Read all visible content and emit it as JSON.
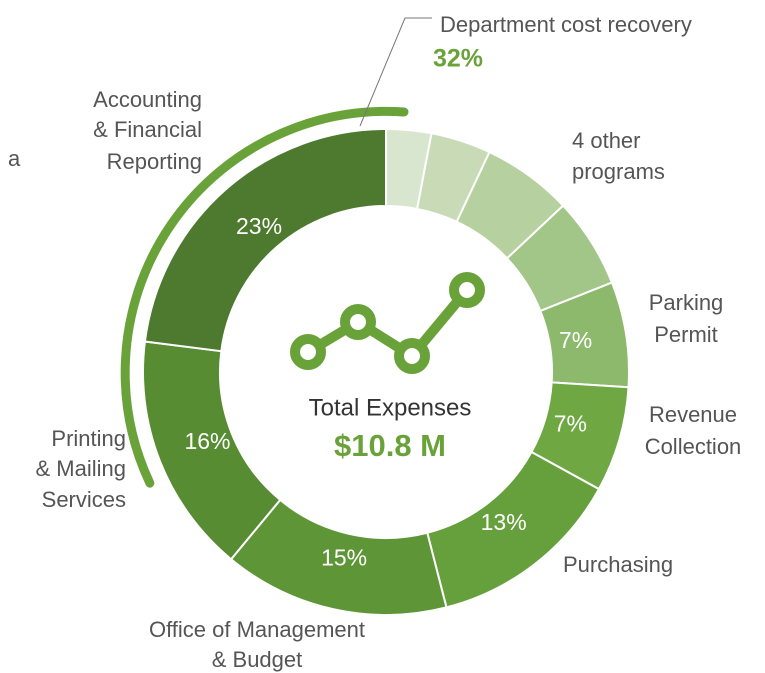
{
  "chart_data": {
    "type": "donut",
    "categories": [
      null,
      null,
      null,
      null,
      [
        "Parking",
        "Permit"
      ],
      [
        "Revenue",
        "Collection"
      ],
      [
        "Purchasing"
      ],
      [
        "Office of Management",
        "& Budget"
      ],
      [
        "Printing",
        "& Mailing",
        "Services"
      ],
      [
        "Accounting",
        "& Financial",
        "Reporting"
      ]
    ],
    "values": [
      3,
      4,
      6,
      6,
      7,
      7,
      13,
      15,
      16,
      23
    ],
    "value_labels": [
      null,
      null,
      null,
      null,
      "7%",
      "7%",
      "13%",
      "15%",
      "16%",
      "23%"
    ],
    "colors": [
      "#d9e6cf",
      "#c8dbb6",
      "#b6d19f",
      "#a2c588",
      "#8cb96b",
      "#6fa843",
      "#66a03c",
      "#5e9637",
      "#578c33",
      "#4d7a2e"
    ],
    "center_title": "Total Expenses",
    "center_value": "$10.8 M",
    "other_label": [
      "4 other",
      "programs"
    ],
    "callout": {
      "label": "Department cost recovery",
      "value": 32,
      "value_label": "32%",
      "color": "#6aa23a"
    }
  },
  "stray_text": "a"
}
